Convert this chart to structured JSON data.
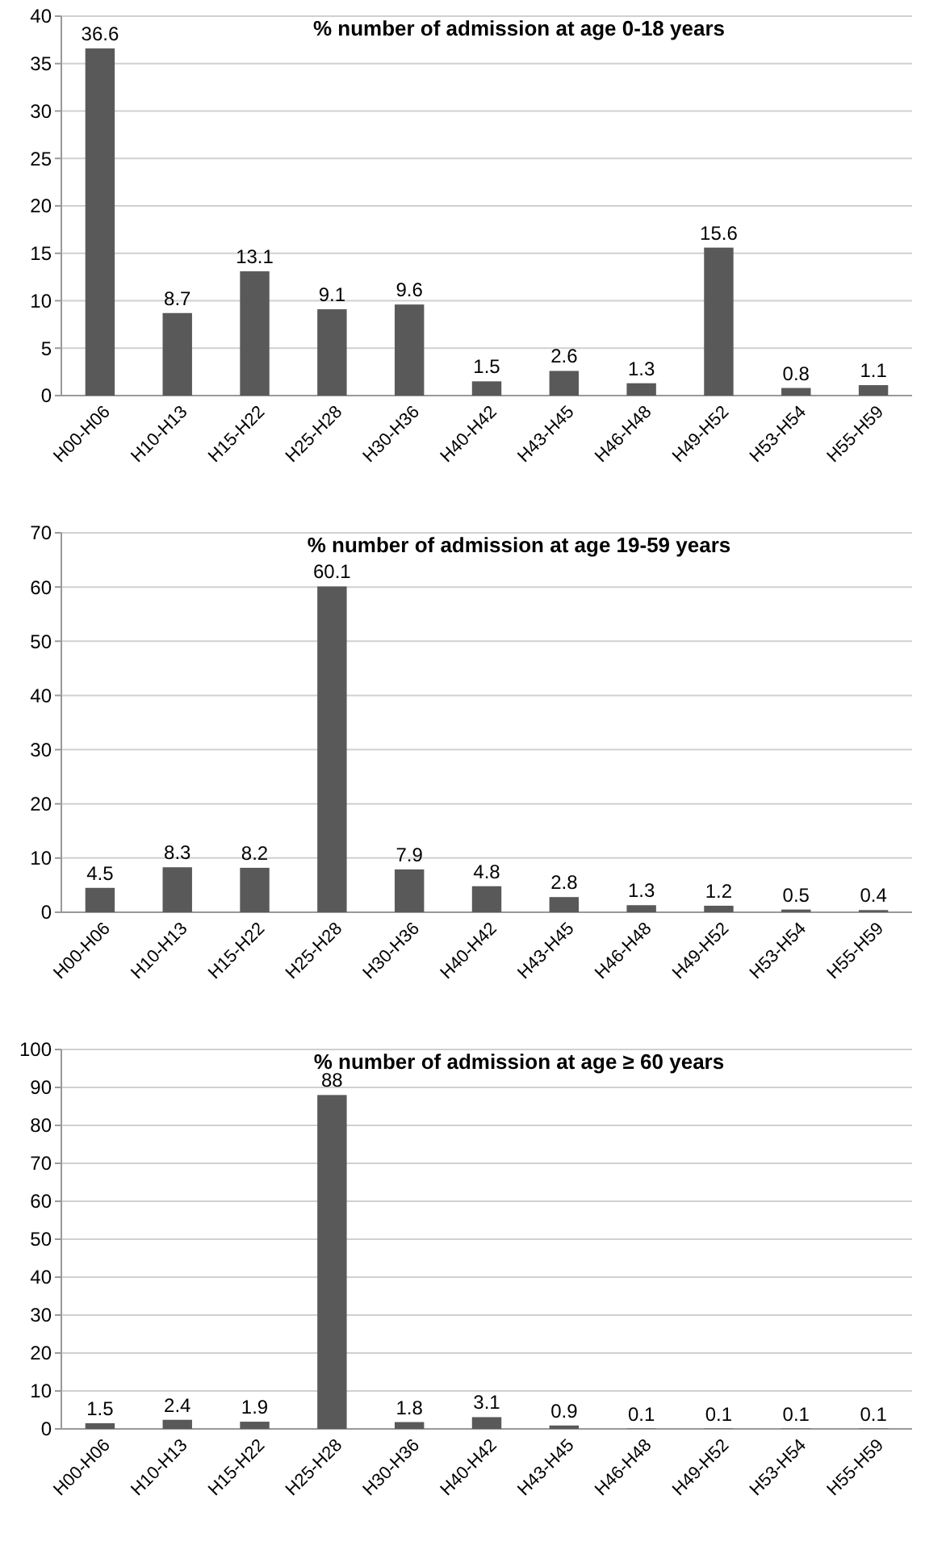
{
  "chart_data": [
    {
      "type": "bar",
      "title": "% number of admission at age 0-18 years",
      "categories": [
        "H00-H06",
        "H10-H13",
        "H15-H22",
        "H25-H28",
        "H30-H36",
        "H40-H42",
        "H43-H45",
        "H46-H48",
        "H49-H52",
        "H53-H54",
        "H55-H59"
      ],
      "values": [
        36.6,
        8.7,
        13.1,
        9.1,
        9.6,
        1.5,
        2.6,
        1.3,
        15.6,
        0.8,
        1.1
      ],
      "color": "#595959",
      "ylim": [
        0,
        40
      ],
      "yticks": [
        0,
        5,
        10,
        15,
        20,
        25,
        30,
        35,
        40
      ],
      "grid": "y",
      "data_labels": true
    },
    {
      "type": "bar",
      "title": "% number of admission at age 19-59 years",
      "categories": [
        "H00-H06",
        "H10-H13",
        "H15-H22",
        "H25-H28",
        "H30-H36",
        "H40-H42",
        "H43-H45",
        "H46-H48",
        "H49-H52",
        "H53-H54",
        "H55-H59"
      ],
      "values": [
        4.5,
        8.3,
        8.2,
        60.1,
        7.9,
        4.8,
        2.8,
        1.3,
        1.2,
        0.5,
        0.4
      ],
      "color": "#595959",
      "ylim": [
        0,
        70
      ],
      "yticks": [
        0,
        10,
        20,
        30,
        40,
        50,
        60,
        70
      ],
      "grid": "y",
      "data_labels": true
    },
    {
      "type": "bar",
      "title": "% number of admission at age ≥ 60 years",
      "categories": [
        "H00-H06",
        "H10-H13",
        "H15-H22",
        "H25-H28",
        "H30-H36",
        "H40-H42",
        "H43-H45",
        "H46-H48",
        "H49-H52",
        "H53-H54",
        "H55-H59"
      ],
      "values": [
        1.5,
        2.4,
        1.9,
        88,
        1.8,
        3.1,
        0.9,
        0.1,
        0.1,
        0.1,
        0.1
      ],
      "color": "#595959",
      "ylim": [
        0,
        100
      ],
      "yticks": [
        0,
        10,
        20,
        30,
        40,
        50,
        60,
        70,
        80,
        90,
        100
      ],
      "grid": "y",
      "data_labels": true
    }
  ]
}
